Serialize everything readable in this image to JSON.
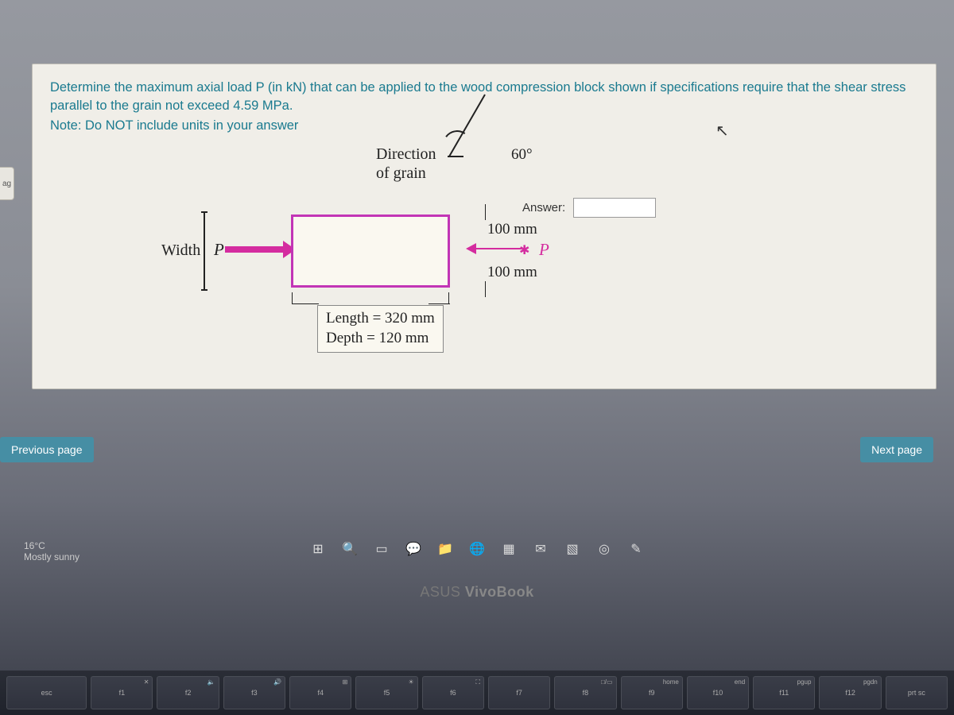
{
  "question": {
    "prompt_line1": "Determine the maximum axial load P (in kN) that can be applied to the wood compression block shown if specifications require that the shear",
    "prompt_line2": "stress parallel to the grain not exceed 4.59 MPa.",
    "note": "Note: Do NOT include units in your answer"
  },
  "diagram": {
    "direction_label": "Direction\nof grain",
    "angle": "60°",
    "width_label": "Width",
    "p_label": "P",
    "p_label_right": "P",
    "dim_100_top": "100 mm",
    "dim_100_bot": "100 mm",
    "length_text": "Length = 320 mm",
    "depth_text": "Depth = 120 mm",
    "block_color": "#faf8f0",
    "block_border_color": "#c235b6",
    "arrow_color": "#d42c9f"
  },
  "answer": {
    "label": "Answer:",
    "value": ""
  },
  "flag_tab": "ag",
  "nav": {
    "prev": "Previous page",
    "next": "Next page"
  },
  "weather": {
    "temp": "16°C",
    "desc": "Mostly sunny"
  },
  "laptop": {
    "brand_prefix": "ASUS ",
    "brand_main": "VivoBook"
  },
  "keyboard": {
    "keys": [
      "esc",
      "f1",
      "f2",
      "f3",
      "f4",
      "f5",
      "f6",
      "f7",
      "f8",
      "f9",
      "f10",
      "f11",
      "f12",
      "prt sc"
    ],
    "super": [
      "",
      "✕",
      "🔈",
      "🔊",
      "⊞",
      "☀",
      "⛶",
      "",
      "□/▭",
      "home",
      "end",
      "pgup",
      "pgdn",
      ""
    ]
  },
  "colors": {
    "panel_bg": "#f0eee8",
    "text_teal": "#1a7a8f",
    "nav_bg": "#468ea4"
  }
}
